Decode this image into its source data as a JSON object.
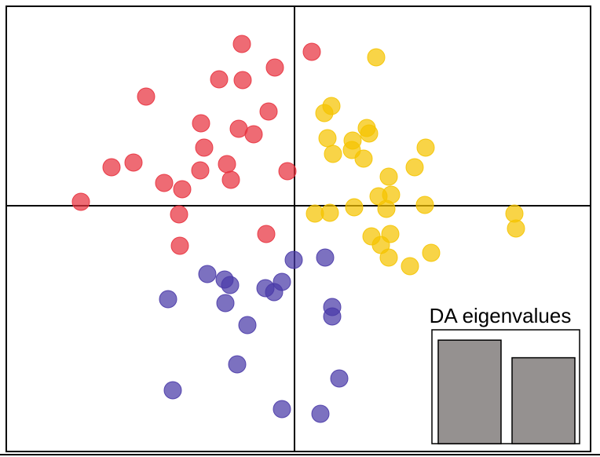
{
  "chart_data": {
    "type": "scatter",
    "xlim": [
      -7.34,
      7.54
    ],
    "ylim": [
      -6.26,
      5.08
    ],
    "series": [
      {
        "color": "#e8323e",
        "x": [
          -1.34,
          0.44,
          -0.5,
          -1.92,
          -1.32,
          -3.78,
          -0.66,
          -2.38,
          -1.42,
          -1.04,
          -2.3,
          -4.66,
          -4.1,
          -1.72,
          -2.4,
          -0.18,
          -3.32,
          -1.62,
          -2.86,
          -5.44,
          -2.94,
          -0.72,
          -2.92
        ],
        "values": [
          4.12,
          3.92,
          3.52,
          3.22,
          3.2,
          2.78,
          2.4,
          2.1,
          1.96,
          1.82,
          1.48,
          0.98,
          1.1,
          1.06,
          0.9,
          0.88,
          0.58,
          0.66,
          0.42,
          0.1,
          -0.22,
          -0.72,
          -1.02
        ]
      },
      {
        "color": "#f5c400",
        "x": [
          2.08,
          0.94,
          0.76,
          1.84,
          0.84,
          1.9,
          1.48,
          1.46,
          3.34,
          0.98,
          1.76,
          3.06,
          2.4,
          2.14,
          2.46,
          1.52,
          2.34,
          3.32,
          0.52,
          0.9,
          5.6,
          5.64,
          1.96,
          2.44,
          2.2,
          2.4,
          3.48,
          2.94
        ],
        "values": [
          3.78,
          2.54,
          2.36,
          1.98,
          1.72,
          1.84,
          1.66,
          1.42,
          1.48,
          1.32,
          1.2,
          0.98,
          0.74,
          0.24,
          0.28,
          -0.04,
          -0.08,
          0.02,
          -0.2,
          -0.18,
          -0.2,
          -0.58,
          -0.78,
          -0.72,
          -1.0,
          -1.32,
          -1.2,
          -1.54
        ]
      },
      {
        "color": "#4a3aa8",
        "x": [
          -0.02,
          0.78,
          -2.22,
          -1.78,
          -1.64,
          -0.32,
          -0.74,
          -0.52,
          -3.22,
          -1.76,
          0.96,
          0.96,
          -1.2,
          -1.46,
          1.14,
          -3.1,
          -0.32,
          0.66
        ],
        "values": [
          -1.38,
          -1.32,
          -1.74,
          -1.88,
          -2.02,
          -1.94,
          -2.1,
          -2.2,
          -2.38,
          -2.48,
          -2.58,
          -2.82,
          -3.04,
          -4.04,
          -4.4,
          -4.7,
          -5.18,
          -5.3
        ]
      }
    ],
    "inset": {
      "type": "bar",
      "title": "DA eigenvalues",
      "values": [
        1.0,
        0.83
      ],
      "color": "#959190",
      "ylim": [
        0,
        1.1
      ]
    }
  }
}
